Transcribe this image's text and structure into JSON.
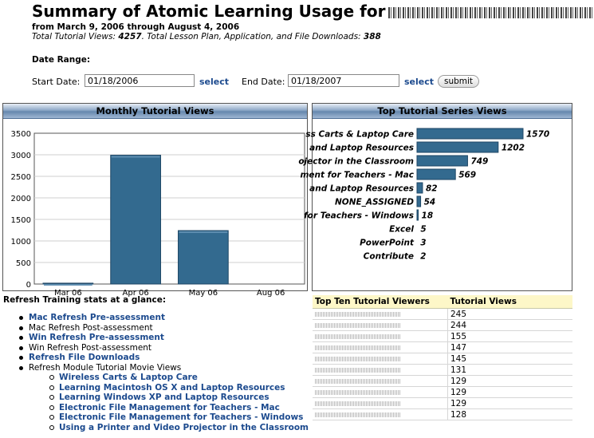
{
  "header": {
    "title": "Summary of Atomic Learning Usage for",
    "date_span": "from March 9, 2006 through August 4, 2006",
    "totals_prefix": "Total Tutorial Views: ",
    "total_views": "4257",
    "totals_middle": ". Total Lesson Plan, Application, and File Downloads: ",
    "total_downloads": "388"
  },
  "date_range": {
    "label": "Date Range:",
    "start_label": "Start Date:",
    "start_value": "01/18/2006",
    "end_label": "End Date:",
    "end_value": "01/18/2007",
    "select_label": "select",
    "submit_label": "submit"
  },
  "monthly": {
    "panel_title": "Monthly Tutorial Views"
  },
  "top_series": {
    "panel_title": "Top Tutorial Series Views"
  },
  "chart_data": [
    {
      "type": "bar",
      "title": "Monthly Tutorial Views",
      "categories": [
        "Mar 06",
        "Apr 06",
        "May 06",
        "Aug 06"
      ],
      "values": [
        20,
        2990,
        1240,
        0
      ],
      "ylim": [
        0,
        3500
      ],
      "yticks": [
        0,
        500,
        1000,
        1500,
        2000,
        2500,
        3000,
        3500
      ],
      "grid": true,
      "bar_color": "#336a8f"
    },
    {
      "type": "bar",
      "orientation": "horizontal",
      "title": "Top Tutorial Series Views",
      "categories": [
        "ss Carts & Laptop Care",
        "and Laptop Resources",
        "ojector in the Classroom",
        "ment for Teachers - Mac",
        "and Laptop Resources",
        "NONE_ASSIGNED",
        "for Teachers - Windows",
        "Excel",
        "PowerPoint",
        "Contribute"
      ],
      "values": [
        1570,
        1202,
        749,
        569,
        82,
        54,
        18,
        5,
        3,
        2
      ],
      "bar_color": "#336a8f"
    }
  ],
  "glance": {
    "title": "Refresh Training stats at a glance:",
    "items": [
      {
        "label": "Mac Refresh Pre-assessment",
        "link": true
      },
      {
        "label": "Mac Refresh Post-assessment",
        "link": false
      },
      {
        "label": "Win Refresh Pre-assessment",
        "link": true
      },
      {
        "label": "Win Refresh Post-assessment",
        "link": false
      },
      {
        "label": "Refresh File Downloads",
        "link": true
      },
      {
        "label": "Refresh Module Tutorial Movie Views",
        "link": false
      }
    ],
    "sub_items": [
      "Wireless Carts & Laptop Care",
      "Learning Macintosh OS X and Laptop Resources",
      "Learning Windows XP and Laptop Resources",
      "Electronic File Management for Teachers - Mac",
      "Electronic File Management for Teachers - Windows",
      "Using a Printer and Video Projector in the Classroom"
    ]
  },
  "viewers": {
    "col_name": "Top Ten Tutorial Viewers",
    "col_views": "Tutorial Views",
    "rows": [
      "245",
      "244",
      "155",
      "147",
      "145",
      "131",
      "129",
      "129",
      "129",
      "128"
    ]
  }
}
